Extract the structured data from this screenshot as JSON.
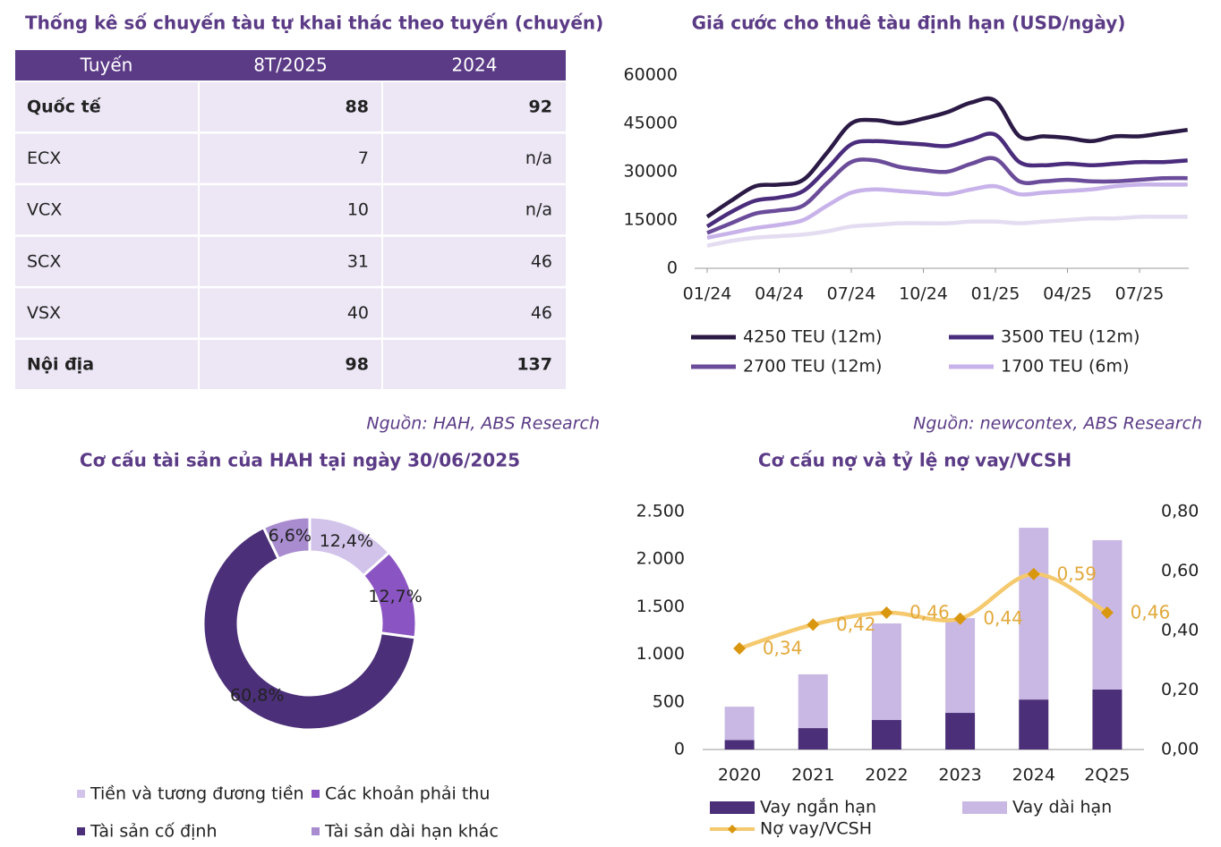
{
  "table": {
    "title": "Thống kê số chuyến tàu tự khai thác theo tuyến (chuyến)",
    "header": [
      "Tuyến",
      "8T/2025",
      "2024"
    ],
    "rows": [
      [
        "Quốc tế",
        88,
        92
      ],
      [
        "ECX",
        7,
        "n/a"
      ],
      [
        "VCX",
        10,
        "n/a"
      ],
      [
        "SCX",
        31,
        46
      ],
      [
        "VSX",
        40,
        46
      ],
      [
        "Nội địa",
        98,
        137
      ]
    ],
    "source": "Nguồn: HAH, ABS Research"
  },
  "chart_data": [
    {
      "type": "line",
      "title": "Giá cước cho thuê tàu định hạn (USD/ngày)",
      "source": "Nguồn: newcontex, ABS Research",
      "categories": [
        "01/24",
        null,
        null,
        "04/24",
        null,
        null,
        "07/24",
        null,
        null,
        "10/24",
        null,
        null,
        "01/25",
        null,
        null,
        "04/25",
        null,
        null,
        "07/25",
        null,
        null
      ],
      "ylim": [
        0,
        60000
      ],
      "yticks": [
        0,
        15000,
        30000,
        45000,
        60000
      ],
      "series": [
        {
          "name": "4250 TEU (12m)",
          "color": "#2b1a45",
          "values": [
            16000,
            21000,
            25500,
            26000,
            27500,
            36000,
            45000,
            46000,
            45000,
            46500,
            48500,
            51500,
            52000,
            41000,
            41000,
            40500,
            39500,
            41000,
            41000,
            42000,
            43000
          ]
        },
        {
          "name": "3500 TEU (12m)",
          "color": "#4a2c7c",
          "values": [
            13000,
            17500,
            21000,
            22000,
            24000,
            31000,
            38500,
            39500,
            39000,
            38500,
            38000,
            40000,
            41500,
            33000,
            32000,
            32500,
            32000,
            32500,
            33000,
            33000,
            33500
          ]
        },
        {
          "name": "2700 TEU (12m)",
          "color": "#6b4c9a",
          "values": [
            11000,
            14000,
            17000,
            18000,
            19500,
            26500,
            33000,
            33500,
            31500,
            30500,
            30000,
            32500,
            34000,
            27000,
            27000,
            27500,
            27000,
            27000,
            27500,
            28000,
            28000
          ]
        },
        {
          "name": "1700 TEU (6m)",
          "color": "#c8b2ea",
          "values": [
            9500,
            11000,
            12500,
            13500,
            15000,
            19500,
            23500,
            24500,
            24000,
            23500,
            23000,
            24500,
            25500,
            23000,
            23500,
            24000,
            24500,
            25500,
            26000,
            26000,
            26000
          ]
        },
        {
          "color": "#e4dcf1",
          "values": [
            7000,
            8500,
            9500,
            10000,
            10500,
            11500,
            13000,
            13500,
            14000,
            14000,
            14000,
            14500,
            14500,
            14000,
            14500,
            15000,
            15500,
            15500,
            16000,
            16000,
            16000
          ]
        }
      ]
    },
    {
      "type": "pie",
      "title": "Cơ cấu tài sản của HAH tại ngày 30/06/2025",
      "categories": [
        "Tiền và tương đương tiền",
        "Các khoản phải thu",
        "Tài sản cố định",
        "Tài sản dài hạn khác"
      ],
      "values": [
        12.4,
        12.7,
        60.8,
        6.6
      ],
      "value_labels": [
        "12,4%",
        "12,7%",
        "60,8%",
        "6,6%"
      ],
      "colors": [
        "#d2c3ea",
        "#8a55c2",
        "#4b2f78",
        "#a88ccf"
      ]
    },
    {
      "type": "combo",
      "title": "Cơ cấu nợ và tỷ lệ nợ vay/VCSH",
      "categories": [
        "2020",
        "2021",
        "2022",
        "2023",
        "2024",
        "2Q25"
      ],
      "ylim": [
        0,
        2500
      ],
      "yticks": [
        0,
        {
          "value": 500,
          "label": "500"
        },
        {
          "value": 1000,
          "label": "1.000"
        },
        {
          "value": 1500,
          "label": "1.500"
        },
        {
          "value": 2000,
          "label": "2.000"
        },
        {
          "value": 2500,
          "label": "2.500"
        }
      ],
      "y2lim": [
        0,
        0.8
      ],
      "y2ticks": [
        {
          "value": 0,
          "label": "0,00"
        },
        {
          "value": 0.2,
          "label": "0,20"
        },
        {
          "value": 0.4,
          "label": "0,40"
        },
        {
          "value": 0.6,
          "label": "0,60"
        },
        {
          "value": 0.8,
          "label": "0,80"
        }
      ],
      "series": [
        {
          "name": "Vay ngắn hạn",
          "type": "bar",
          "color": "#4b2f78",
          "values": [
            100,
            225,
            310,
            385,
            525,
            630
          ]
        },
        {
          "name": "Vay dài hạn",
          "type": "bar",
          "color": "#c9b8e4",
          "values": [
            350,
            565,
            1015,
            995,
            1805,
            1570
          ]
        },
        {
          "name": "Nợ vay/VCSH",
          "type": "line",
          "axis": "y2",
          "color": "#f5c96e",
          "marker_color": "#d9960f",
          "label_color": "#e2a93c",
          "values": [
            0.34,
            0.42,
            0.46,
            0.44,
            0.59,
            0.46
          ],
          "value_labels": [
            "0,34",
            "0,42",
            "0,46",
            "0,44",
            "0,59",
            "0,46"
          ]
        }
      ]
    }
  ]
}
